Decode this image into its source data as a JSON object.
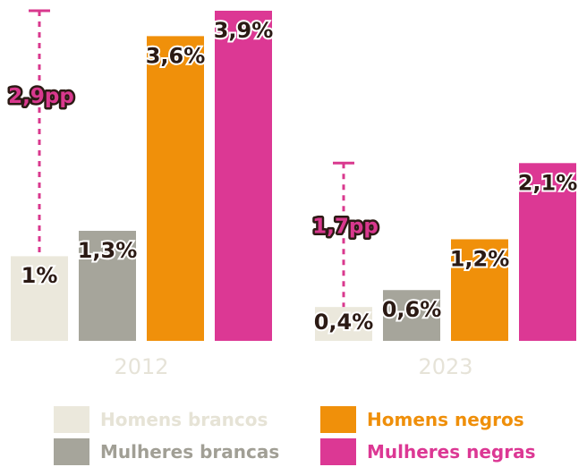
{
  "chart_data": {
    "type": "bar",
    "categories": [
      "2012",
      "2023"
    ],
    "ylim": [
      0,
      3.9
    ],
    "series": [
      {
        "name": "Homens brancos",
        "values": [
          1.0,
          0.4
        ],
        "labels": [
          "1%",
          "0,4%"
        ],
        "color": "#ebe8dc",
        "legend_text_color": "#e6e3d6"
      },
      {
        "name": "Mulheres brancas",
        "values": [
          1.3,
          0.6
        ],
        "labels": [
          "1,3%",
          "0,6%"
        ],
        "color": "#a6a59b",
        "legend_text_color": "#a19f95"
      },
      {
        "name": "Homens negros",
        "values": [
          3.6,
          1.2
        ],
        "labels": [
          "3,6%",
          "1,2%"
        ],
        "color": "#f0900a",
        "legend_text_color": "#ef8f0a"
      },
      {
        "name": "Mulheres negras",
        "values": [
          3.9,
          2.1
        ],
        "labels": [
          "3,9%",
          "2,1%"
        ],
        "color": "#dc3894",
        "legend_text_color": "#dc3894"
      }
    ],
    "annotations": [
      {
        "category": "2012",
        "text": "2,9pp",
        "from": 1.0,
        "to": 3.9,
        "color": "#d9388e"
      },
      {
        "category": "2023",
        "text": "1,7pp",
        "from": 0.4,
        "to": 2.1,
        "color": "#d9388e"
      }
    ],
    "category_label_color": "#e6e3d8",
    "value_label_color": "#2b1a14",
    "grid": false,
    "legend_position": "bottom"
  }
}
